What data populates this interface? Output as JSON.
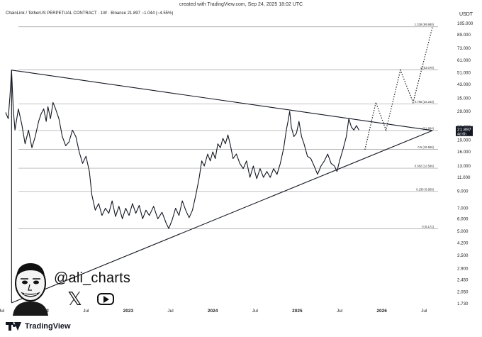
{
  "header": {
    "caption": "created with TradingView.com, Sep 24, 2025 18:02 UTC",
    "symbol_line": "ChainLink / TetherUS PERPETUAL CONTRACT · 1W · Binance  21.897  −1.044 (−4.55%)",
    "currency": "USDT"
  },
  "branding": {
    "handle": "@ali_charts",
    "footer_text": "TradingView",
    "social_icons": [
      "x-icon",
      "youtube-icon"
    ]
  },
  "colors": {
    "price_line": "#131722",
    "price_badge": "#131722",
    "fib_line": "#9e9e9e",
    "background": "#ffffff"
  },
  "chart_data": {
    "type": "line",
    "title": "ChainLink / TetherUS PERPETUAL CONTRACT · 1W · Binance",
    "xlabel": "",
    "ylabel": "USDT",
    "y_scale": "log",
    "ylim": [
      1.73,
      105.0
    ],
    "xlim": [
      2021.55,
      2026.85
    ],
    "x_ticks": [
      {
        "label": "Jul",
        "x": 2021.5
      },
      {
        "label": "2022",
        "x": 2022.0
      },
      {
        "label": "Jul",
        "x": 2022.5
      },
      {
        "label": "2023",
        "x": 2023.0
      },
      {
        "label": "Jul",
        "x": 2023.5
      },
      {
        "label": "2024",
        "x": 2024.0
      },
      {
        "label": "Jul",
        "x": 2024.5
      },
      {
        "label": "2025",
        "x": 2025.0
      },
      {
        "label": "Jul",
        "x": 2025.5
      },
      {
        "label": "2026",
        "x": 2026.0
      },
      {
        "label": "Jul",
        "x": 2026.5
      }
    ],
    "y_ticks": [
      "105.000",
      "89.000",
      "73.000",
      "61.000",
      "51.000",
      "43.000",
      "35.000",
      "29.000",
      "23.000",
      "19.000",
      "16.000",
      "13.000",
      "11.000",
      "9.000",
      "7.000",
      "6.000",
      "5.000",
      "4.200",
      "3.500",
      "2.900",
      "2.450",
      "2.050",
      "1.730"
    ],
    "y_tick_values": [
      105,
      89,
      73,
      61,
      51,
      43,
      35,
      29,
      23,
      19,
      16,
      13,
      11,
      9,
      7,
      6,
      5,
      4.2,
      3.5,
      2.9,
      2.45,
      2.05,
      1.73
    ],
    "current_price": {
      "value": 21.897,
      "label": "21.897",
      "countdown": "4d 6h"
    },
    "fib_levels": [
      {
        "ratio": "1.328",
        "value": 99.98,
        "label": "1.328 (99.980)"
      },
      {
        "ratio": "1",
        "value": 53.07,
        "label": "1 (53.070)"
      },
      {
        "ratio": "0.786",
        "value": 32.243,
        "label": "0.786 (32.243)"
      },
      {
        "ratio": "0.618",
        "value": 21.864,
        "label": "(21.864)"
      },
      {
        "ratio": "0.5",
        "value": 16.566,
        "label": "0.5 (16.566)"
      },
      {
        "ratio": "0.382",
        "value": 12.586,
        "label": "0.382 (12.586)"
      },
      {
        "ratio": "0.236",
        "value": 8.959,
        "label": "0.236 (8.959)"
      },
      {
        "ratio": "0",
        "value": 5.171,
        "label": "0 (5.171)"
      }
    ],
    "triangle": {
      "upper_line": [
        [
          2021.62,
          53.0
        ],
        [
          2026.6,
          21.86
        ]
      ],
      "lower_line": [
        [
          2021.62,
          1.75
        ],
        [
          2026.6,
          21.86
        ]
      ],
      "left_edge": [
        [
          2021.62,
          53.0
        ],
        [
          2021.62,
          1.75
        ]
      ]
    },
    "series": [
      {
        "points": [
          [
            2021.55,
            28.5
          ],
          [
            2021.58,
            26.0
          ],
          [
            2021.6,
            36.0
          ],
          [
            2021.62,
            53.0
          ],
          [
            2021.64,
            30.0
          ],
          [
            2021.66,
            22.0
          ],
          [
            2021.7,
            30.0
          ],
          [
            2021.74,
            24.0
          ],
          [
            2021.78,
            18.0
          ],
          [
            2021.82,
            22.0
          ],
          [
            2021.86,
            17.0
          ],
          [
            2021.9,
            20.0
          ],
          [
            2021.94,
            25.0
          ],
          [
            2021.97,
            28.0
          ],
          [
            2022.0,
            30.0
          ],
          [
            2022.03,
            25.0
          ],
          [
            2022.05,
            31.0
          ],
          [
            2022.08,
            26.0
          ],
          [
            2022.11,
            33.0
          ],
          [
            2022.14,
            30.0
          ],
          [
            2022.18,
            26.0
          ],
          [
            2022.22,
            20.0
          ],
          [
            2022.26,
            17.5
          ],
          [
            2022.3,
            18.5
          ],
          [
            2022.34,
            22.0
          ],
          [
            2022.38,
            20.0
          ],
          [
            2022.42,
            16.0
          ],
          [
            2022.46,
            13.5
          ],
          [
            2022.5,
            15.0
          ],
          [
            2022.54,
            12.0
          ],
          [
            2022.57,
            8.5
          ],
          [
            2022.61,
            6.8
          ],
          [
            2022.65,
            7.5
          ],
          [
            2022.69,
            6.3
          ],
          [
            2022.73,
            7.0
          ],
          [
            2022.77,
            6.5
          ],
          [
            2022.81,
            7.8
          ],
          [
            2022.85,
            6.2
          ],
          [
            2022.89,
            7.2
          ],
          [
            2022.93,
            6.0
          ],
          [
            2022.97,
            7.0
          ],
          [
            2023.01,
            6.3
          ],
          [
            2023.05,
            7.5
          ],
          [
            2023.09,
            6.5
          ],
          [
            2023.13,
            7.3
          ],
          [
            2023.17,
            6.0
          ],
          [
            2023.21,
            6.8
          ],
          [
            2023.25,
            6.3
          ],
          [
            2023.3,
            7.2
          ],
          [
            2023.35,
            6.0
          ],
          [
            2023.4,
            6.6
          ],
          [
            2023.45,
            5.6
          ],
          [
            2023.48,
            5.2
          ],
          [
            2023.52,
            5.9
          ],
          [
            2023.56,
            7.0
          ],
          [
            2023.6,
            6.3
          ],
          [
            2023.64,
            7.8
          ],
          [
            2023.68,
            6.8
          ],
          [
            2023.72,
            6.1
          ],
          [
            2023.76,
            6.8
          ],
          [
            2023.8,
            8.5
          ],
          [
            2023.84,
            11.0
          ],
          [
            2023.87,
            14.0
          ],
          [
            2023.9,
            13.0
          ],
          [
            2023.94,
            15.5
          ],
          [
            2023.97,
            14.0
          ],
          [
            2024.0,
            16.0
          ],
          [
            2024.03,
            14.5
          ],
          [
            2024.06,
            18.0
          ],
          [
            2024.09,
            17.0
          ],
          [
            2024.12,
            19.5
          ],
          [
            2024.15,
            18.0
          ],
          [
            2024.18,
            20.5
          ],
          [
            2024.21,
            17.5
          ],
          [
            2024.24,
            14.5
          ],
          [
            2024.28,
            15.5
          ],
          [
            2024.32,
            13.5
          ],
          [
            2024.36,
            12.5
          ],
          [
            2024.4,
            14.0
          ],
          [
            2024.44,
            11.0
          ],
          [
            2024.48,
            13.0
          ],
          [
            2024.52,
            10.8
          ],
          [
            2024.56,
            12.5
          ],
          [
            2024.6,
            11.0
          ],
          [
            2024.64,
            12.0
          ],
          [
            2024.68,
            11.0
          ],
          [
            2024.72,
            12.5
          ],
          [
            2024.76,
            11.5
          ],
          [
            2024.8,
            13.5
          ],
          [
            2024.84,
            17.0
          ],
          [
            2024.87,
            22.0
          ],
          [
            2024.89,
            25.0
          ],
          [
            2024.91,
            29.0
          ],
          [
            2024.93,
            23.0
          ],
          [
            2024.96,
            20.0
          ],
          [
            2024.99,
            21.0
          ],
          [
            2025.02,
            25.0
          ],
          [
            2025.05,
            20.0
          ],
          [
            2025.08,
            18.0
          ],
          [
            2025.12,
            15.0
          ],
          [
            2025.16,
            14.5
          ],
          [
            2025.2,
            13.0
          ],
          [
            2025.24,
            11.5
          ],
          [
            2025.28,
            13.0
          ],
          [
            2025.32,
            14.0
          ],
          [
            2025.36,
            15.5
          ],
          [
            2025.4,
            13.5
          ],
          [
            2025.44,
            13.0
          ],
          [
            2025.47,
            12.0
          ],
          [
            2025.5,
            14.0
          ],
          [
            2025.54,
            16.5
          ],
          [
            2025.58,
            20.0
          ],
          [
            2025.61,
            26.0
          ],
          [
            2025.64,
            23.0
          ],
          [
            2025.67,
            22.0
          ],
          [
            2025.7,
            23.5
          ],
          [
            2025.73,
            22.0
          ]
        ]
      }
    ],
    "projection": [
      [
        2025.8,
        16.5
      ],
      [
        2025.93,
        33.0
      ],
      [
        2026.05,
        22.0
      ],
      [
        2026.22,
        53.0
      ],
      [
        2026.37,
        33.0
      ],
      [
        2026.6,
        99.98
      ]
    ],
    "grid": false,
    "legend": "none"
  }
}
